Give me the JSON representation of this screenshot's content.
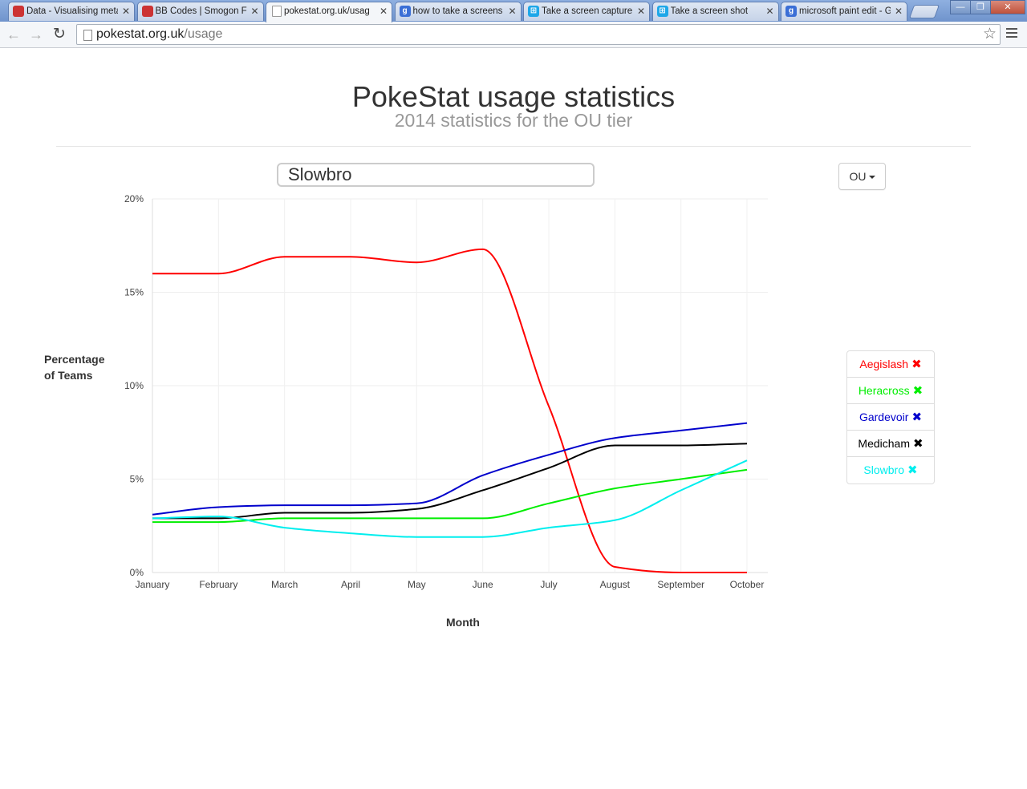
{
  "browser": {
    "tabs": [
      {
        "title": "Data - Visualising meta",
        "icon": "pokeball-icon",
        "active": false
      },
      {
        "title": "BB Codes | Smogon Fo",
        "icon": "pokeball-icon",
        "active": false
      },
      {
        "title": "pokestat.org.uk/usag",
        "icon": "page-icon",
        "active": true
      },
      {
        "title": "how to take a screens",
        "icon": "google-icon",
        "active": false
      },
      {
        "title": "Take a screen capture",
        "icon": "windows-icon",
        "active": false
      },
      {
        "title": "Take a screen shot",
        "icon": "windows-icon",
        "active": false
      },
      {
        "title": "microsoft paint edit - G",
        "icon": "google-icon",
        "active": false
      }
    ],
    "url_host": "pokestat.org.uk",
    "url_path": "/usage"
  },
  "header": {
    "title": "PokeStat usage statistics",
    "subtitle": "2014 statistics for the OU tier"
  },
  "search": {
    "value": "Slowbro"
  },
  "tier_select": {
    "selected": "OU"
  },
  "legend": [
    {
      "name": "Aegislash",
      "color": "#ff0000"
    },
    {
      "name": "Heracross",
      "color": "#00ee00"
    },
    {
      "name": "Gardevoir",
      "color": "#0000cc"
    },
    {
      "name": "Medicham",
      "color": "#000000"
    },
    {
      "name": "Slowbro",
      "color": "#00eeee"
    }
  ],
  "chart_data": {
    "type": "line",
    "title": "",
    "xlabel": "Month",
    "ylabel": "Percentage of Teams",
    "x": [
      "January",
      "February",
      "March",
      "April",
      "May",
      "June",
      "July",
      "August",
      "September",
      "October"
    ],
    "ylim": [
      0,
      20
    ],
    "yticks": [
      "0%",
      "5%",
      "10%",
      "15%",
      "20%"
    ],
    "grid": true,
    "series": [
      {
        "name": "Aegislash",
        "color": "#ff0000",
        "values": [
          16.0,
          16.0,
          16.9,
          16.9,
          16.6,
          17.3,
          8.9,
          0.3,
          0.0,
          0.0
        ]
      },
      {
        "name": "Heracross",
        "color": "#00ee00",
        "values": [
          2.7,
          2.7,
          2.9,
          2.9,
          2.9,
          2.9,
          3.7,
          4.5,
          5.0,
          5.5
        ]
      },
      {
        "name": "Gardevoir",
        "color": "#0000cc",
        "values": [
          3.1,
          3.5,
          3.6,
          3.6,
          3.7,
          5.2,
          6.3,
          7.2,
          7.6,
          8.0
        ]
      },
      {
        "name": "Medicham",
        "color": "#000000",
        "values": [
          2.9,
          2.9,
          3.2,
          3.2,
          3.4,
          4.4,
          5.6,
          6.8,
          6.8,
          6.9
        ]
      },
      {
        "name": "Slowbro",
        "color": "#00eeee",
        "values": [
          2.9,
          3.0,
          2.4,
          2.1,
          1.9,
          1.9,
          2.4,
          2.8,
          4.4,
          6.0
        ]
      }
    ]
  }
}
